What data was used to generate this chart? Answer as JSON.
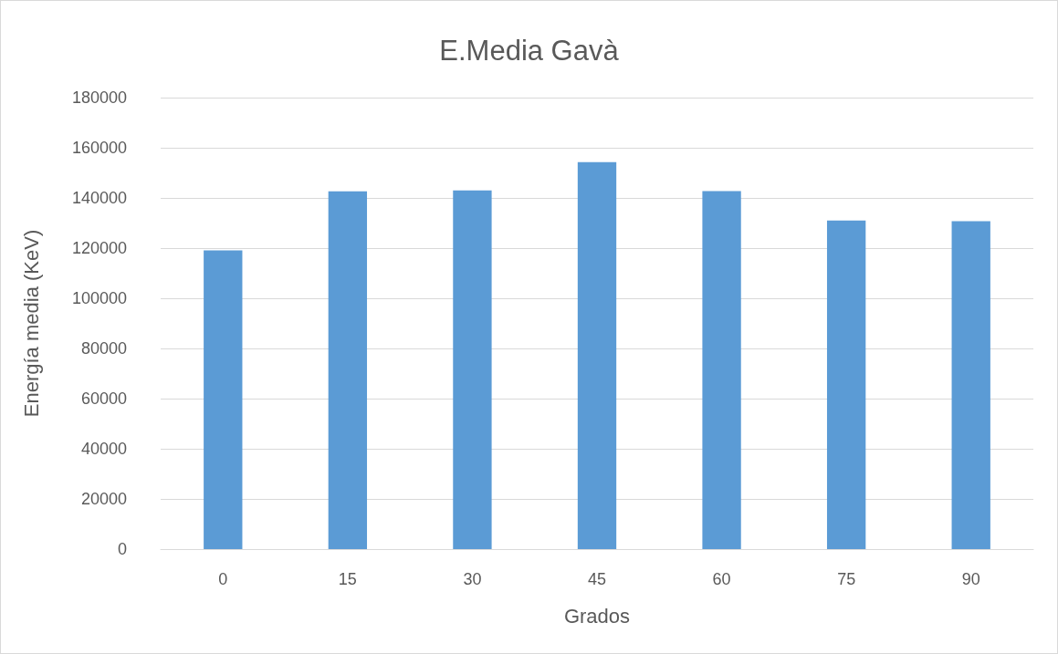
{
  "chart_data": {
    "type": "bar",
    "title": "E.Media Gavà",
    "xlabel": "Grados",
    "ylabel": "Energía media (KeV)",
    "categories": [
      "0",
      "15",
      "30",
      "45",
      "60",
      "75",
      "90"
    ],
    "values": [
      119100,
      142600,
      143000,
      154300,
      142700,
      131000,
      130700
    ],
    "color": "#5b9bd5",
    "ylim": [
      0,
      180000
    ],
    "yticks": [
      0,
      20000,
      40000,
      60000,
      80000,
      100000,
      120000,
      140000,
      160000,
      180000
    ],
    "grid": "y"
  }
}
